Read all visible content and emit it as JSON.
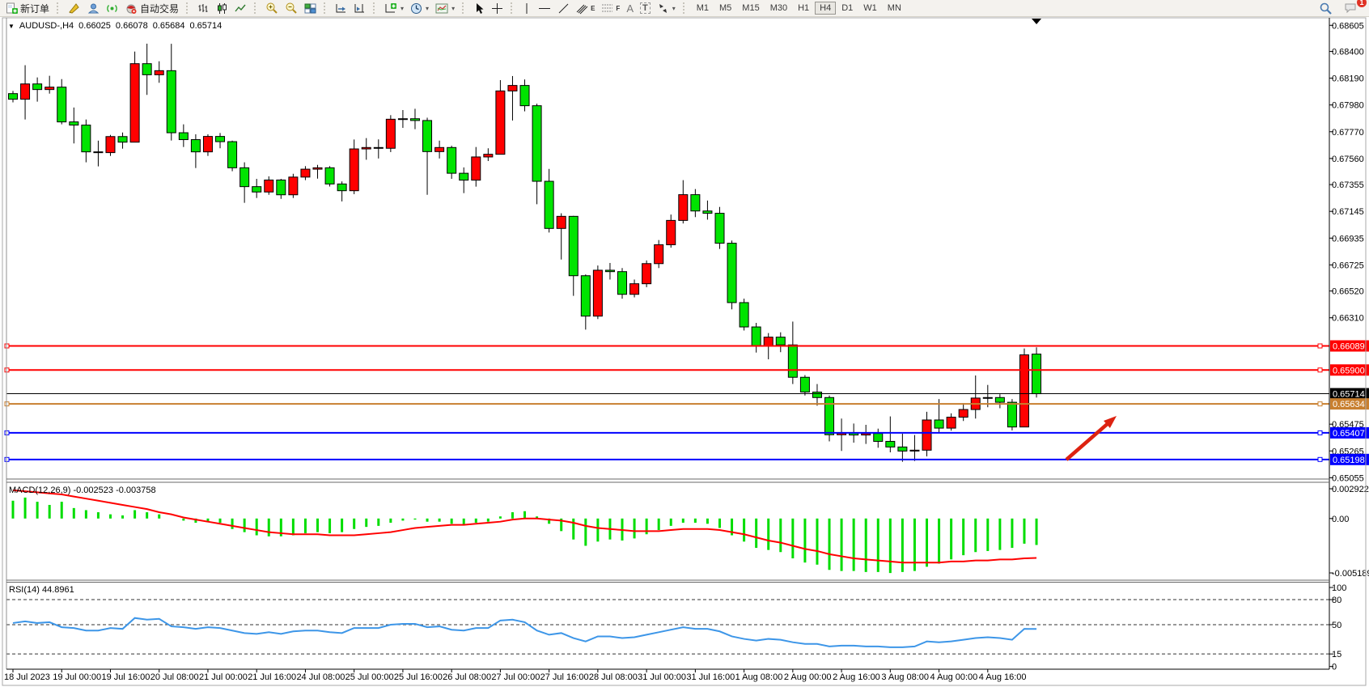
{
  "toolbar": {
    "labels": {
      "new_order": "新订单",
      "autotrading": "自动交易"
    },
    "glyphs": {
      "text_tool": "A",
      "label_tool": "T",
      "channel_sub": "E",
      "fibo_sub": "F",
      "dropdown": "▾"
    },
    "timeframes": [
      "M1",
      "M5",
      "M15",
      "M30",
      "H1",
      "H4",
      "D1",
      "W1",
      "MN"
    ],
    "active_timeframe": "H4",
    "notification_count": "1"
  },
  "chart": {
    "symbol_header": {
      "symbol": "AUDUSD-,H4",
      "open": "0.66025",
      "high": "0.66078",
      "low": "0.65684",
      "close": "0.65714"
    },
    "indicator_labels": {
      "macd": "MACD(12,26,9) -0.002523 -0.003758",
      "rsi": "RSI(14) 44.8961"
    }
  },
  "chart_data": {
    "type": "candlestick",
    "symbol": "AUDUSD-",
    "timeframe": "H4",
    "current_bar": {
      "open": 0.66025,
      "high": 0.66078,
      "low": 0.65684,
      "close": 0.65714
    },
    "colors": {
      "bull": "#ff0000",
      "bear": "#00e400",
      "wick": "#000000",
      "macd_hist": "#00dd00",
      "macd_signal": "#ff0000",
      "rsi_line": "#3d96e8",
      "level_red": "#ff0000",
      "level_orange": "#c87f2f",
      "level_blue": "#0000ff",
      "current_price": "#000000"
    },
    "price_axis_ticks": [
      "0.68605",
      "0.68400",
      "0.68190",
      "0.67980",
      "0.67770",
      "0.67560",
      "0.67355",
      "0.67145",
      "0.66935",
      "0.66725",
      "0.66520",
      "0.66310",
      "0.65475",
      "0.65265",
      "0.65055"
    ],
    "ylim": [
      0.65055,
      0.68605
    ],
    "time_labels": [
      "18 Jul 2023",
      "19 Jul 00:00",
      "19 Jul 16:00",
      "20 Jul 08:00",
      "21 Jul 00:00",
      "21 Jul 16:00",
      "24 Jul 08:00",
      "25 Jul 00:00",
      "25 Jul 16:00",
      "26 Jul 08:00",
      "27 Jul 00:00",
      "27 Jul 16:00",
      "28 Jul 08:00",
      "31 Jul 00:00",
      "31 Jul 16:00",
      "1 Aug 08:00",
      "2 Aug 00:00",
      "2 Aug 16:00",
      "3 Aug 08:00",
      "4 Aug 00:00",
      "4 Aug 16:00"
    ],
    "levels": [
      {
        "label": "0.66089",
        "value": 0.66089,
        "color": "#ff0000",
        "width": 2,
        "current": false
      },
      {
        "label": "0.65900",
        "value": 0.659,
        "color": "#ff0000",
        "width": 2,
        "current": false
      },
      {
        "label": "0.65714",
        "value": 0.65714,
        "color": "#000000",
        "width": 1,
        "current": true
      },
      {
        "label": "0.65634",
        "value": 0.65634,
        "color": "#c87f2f",
        "width": 2,
        "current": false
      },
      {
        "label": "0.65407",
        "value": 0.65407,
        "color": "#0000ff",
        "width": 2,
        "current": false
      },
      {
        "label": "0.65198",
        "value": 0.65198,
        "color": "#0000ff",
        "width": 2,
        "current": false
      }
    ],
    "candles": [
      [
        0.68069,
        0.6809,
        0.68,
        0.68025
      ],
      [
        0.68025,
        0.68292,
        0.67866,
        0.68145
      ],
      [
        0.68145,
        0.68196,
        0.68006,
        0.68101
      ],
      [
        0.68101,
        0.68209,
        0.68069,
        0.6812
      ],
      [
        0.6812,
        0.68183,
        0.67828,
        0.67847
      ],
      [
        0.67847,
        0.6796,
        0.67678,
        0.67822
      ],
      [
        0.67822,
        0.67866,
        0.6753,
        0.67612
      ],
      [
        0.67612,
        0.677,
        0.67498,
        0.67606
      ],
      [
        0.67606,
        0.67745,
        0.6758,
        0.67732
      ],
      [
        0.67732,
        0.67764,
        0.67637,
        0.67688
      ],
      [
        0.67688,
        0.68399,
        0.67688,
        0.68304
      ],
      [
        0.68304,
        0.68461,
        0.68059,
        0.68217
      ],
      [
        0.68217,
        0.68323,
        0.68154,
        0.68249
      ],
      [
        0.68249,
        0.6846,
        0.67701,
        0.67762
      ],
      [
        0.67762,
        0.67828,
        0.6765,
        0.67708
      ],
      [
        0.67708,
        0.6775,
        0.67485,
        0.67612
      ],
      [
        0.67612,
        0.6775,
        0.6758,
        0.67733
      ],
      [
        0.67733,
        0.6776,
        0.6764,
        0.67692
      ],
      [
        0.67692,
        0.677,
        0.6746,
        0.67487
      ],
      [
        0.67487,
        0.6753,
        0.67212,
        0.67339
      ],
      [
        0.67339,
        0.674,
        0.6725,
        0.67297
      ],
      [
        0.67297,
        0.6742,
        0.67275,
        0.67391
      ],
      [
        0.67391,
        0.674,
        0.67243,
        0.67275
      ],
      [
        0.67275,
        0.6744,
        0.6725,
        0.67414
      ],
      [
        0.67414,
        0.675,
        0.6739,
        0.67476
      ],
      [
        0.67476,
        0.6751,
        0.67402,
        0.67487
      ],
      [
        0.67487,
        0.675,
        0.6734,
        0.6736
      ],
      [
        0.6736,
        0.6738,
        0.67223,
        0.67307
      ],
      [
        0.67307,
        0.67709,
        0.6728,
        0.67635
      ],
      [
        0.67635,
        0.6772,
        0.6755,
        0.67646
      ],
      [
        0.67646,
        0.6771,
        0.6756,
        0.6764
      ],
      [
        0.6764,
        0.679,
        0.6761,
        0.67868
      ],
      [
        0.67868,
        0.6794,
        0.678,
        0.67872
      ],
      [
        0.67872,
        0.6795,
        0.6779,
        0.67858
      ],
      [
        0.67858,
        0.6788,
        0.67275,
        0.67614
      ],
      [
        0.67614,
        0.677,
        0.6756,
        0.67646
      ],
      [
        0.67646,
        0.6766,
        0.674,
        0.67444
      ],
      [
        0.67444,
        0.6749,
        0.67288,
        0.6739
      ],
      [
        0.6739,
        0.6765,
        0.67339,
        0.67572
      ],
      [
        0.67572,
        0.6764,
        0.6754,
        0.67593
      ],
      [
        0.67593,
        0.68175,
        0.67593,
        0.6809
      ],
      [
        0.6809,
        0.68207,
        0.67858,
        0.68133
      ],
      [
        0.68133,
        0.6818,
        0.6793,
        0.67974
      ],
      [
        0.67974,
        0.6799,
        0.67201,
        0.67381
      ],
      [
        0.67381,
        0.67478,
        0.66979,
        0.67011
      ],
      [
        0.67011,
        0.6713,
        0.66767,
        0.67106
      ],
      [
        0.67106,
        0.6711,
        0.66482,
        0.6664
      ],
      [
        0.6664,
        0.6665,
        0.66217,
        0.66323
      ],
      [
        0.66323,
        0.6672,
        0.663,
        0.66683
      ],
      [
        0.66683,
        0.6674,
        0.6661,
        0.66672
      ],
      [
        0.66672,
        0.667,
        0.6646,
        0.66494
      ],
      [
        0.66494,
        0.6661,
        0.6647,
        0.66577
      ],
      [
        0.66577,
        0.6676,
        0.6655,
        0.66735
      ],
      [
        0.66735,
        0.6692,
        0.667,
        0.66883
      ],
      [
        0.66883,
        0.6712,
        0.6686,
        0.67074
      ],
      [
        0.67074,
        0.6739,
        0.6705,
        0.67276
      ],
      [
        0.67276,
        0.6732,
        0.671,
        0.67148
      ],
      [
        0.67148,
        0.6723,
        0.6708,
        0.6713
      ],
      [
        0.6713,
        0.6718,
        0.6685,
        0.66895
      ],
      [
        0.66895,
        0.66916,
        0.66376,
        0.66429
      ],
      [
        0.66429,
        0.6646,
        0.6621,
        0.66238
      ],
      [
        0.66238,
        0.6627,
        0.66037,
        0.66086
      ],
      [
        0.66086,
        0.6619,
        0.65984,
        0.66158
      ],
      [
        0.66158,
        0.66196,
        0.6604,
        0.66097
      ],
      [
        0.66097,
        0.6628,
        0.6579,
        0.65843
      ],
      [
        0.65843,
        0.6586,
        0.657,
        0.65727
      ],
      [
        0.65727,
        0.6579,
        0.6562,
        0.65684
      ],
      [
        0.65684,
        0.657,
        0.6534,
        0.65392
      ],
      [
        0.65392,
        0.65519,
        0.65265,
        0.65404
      ],
      [
        0.65404,
        0.6548,
        0.6533,
        0.6539
      ],
      [
        0.6539,
        0.6547,
        0.6532,
        0.65402
      ],
      [
        0.65402,
        0.6544,
        0.6529,
        0.6534
      ],
      [
        0.6534,
        0.65536,
        0.65254,
        0.65296
      ],
      [
        0.65296,
        0.654,
        0.6518,
        0.65264
      ],
      [
        0.65264,
        0.6539,
        0.65186,
        0.65271
      ],
      [
        0.65271,
        0.65572,
        0.65222,
        0.65508
      ],
      [
        0.65508,
        0.65672,
        0.6541,
        0.65444
      ],
      [
        0.65444,
        0.6556,
        0.65424,
        0.6553
      ],
      [
        0.6553,
        0.6564,
        0.655,
        0.6559
      ],
      [
        0.6559,
        0.65857,
        0.65519,
        0.6568
      ],
      [
        0.6568,
        0.65783,
        0.65608,
        0.65684
      ],
      [
        0.65684,
        0.6571,
        0.656,
        0.65647
      ],
      [
        0.65647,
        0.65672,
        0.65426,
        0.65453
      ],
      [
        0.65453,
        0.66069,
        0.65453,
        0.66019
      ],
      [
        0.66025,
        0.66078,
        0.65684,
        0.65714
      ]
    ],
    "macd": {
      "params": "12,26,9",
      "main_value": -0.002523,
      "signal_value": -0.003758,
      "axis_ticks": [
        {
          "label": "0.002922",
          "value": 0.002922
        },
        {
          "label": "0.00",
          "value": 0
        },
        {
          "label": "-0.005189",
          "value": -0.005189
        }
      ],
      "histogram": [
        0.0017,
        0.002,
        0.0016,
        0.0013,
        0.0016,
        0.001,
        0.0008,
        0.0006,
        0.0004,
        0.0003,
        0.0008,
        0.0006,
        0.0004,
        0.0,
        -0.0002,
        -0.0004,
        -0.0003,
        -0.0004,
        -0.001,
        -0.0013,
        -0.0016,
        -0.0017,
        -0.0017,
        -0.0016,
        -0.0014,
        -0.0013,
        -0.0014,
        -0.0013,
        -0.001,
        -0.0008,
        -0.0007,
        -0.0004,
        -0.0002,
        -0.0001,
        -0.0003,
        -0.0003,
        -0.0005,
        -0.0006,
        -0.0004,
        -0.0003,
        0.0002,
        0.0006,
        0.0007,
        0.0002,
        -0.0005,
        -0.0012,
        -0.002,
        -0.0026,
        -0.0022,
        -0.002,
        -0.0021,
        -0.0019,
        -0.0015,
        -0.0011,
        -0.0007,
        -0.0004,
        -0.0004,
        -0.0005,
        -0.0009,
        -0.0016,
        -0.0022,
        -0.0028,
        -0.003,
        -0.0032,
        -0.0038,
        -0.0042,
        -0.0044,
        -0.0049,
        -0.005,
        -0.005,
        -0.0051,
        -0.0051,
        -0.0052,
        -0.0051,
        -0.005,
        -0.0046,
        -0.0043,
        -0.0039,
        -0.0035,
        -0.0032,
        -0.0031,
        -0.003,
        -0.0028,
        -0.0024,
        -0.002523
      ],
      "signal": [
        0.0027,
        0.0026,
        0.0025,
        0.0024,
        0.0023,
        0.0021,
        0.0019,
        0.0017,
        0.0015,
        0.0013,
        0.0011,
        0.0009,
        0.0006,
        0.0004,
        0.0001,
        -0.0001,
        -0.0003,
        -0.0005,
        -0.0007,
        -0.0009,
        -0.0011,
        -0.0013,
        -0.0014,
        -0.0015,
        -0.0015,
        -0.0015,
        -0.0016,
        -0.0016,
        -0.0016,
        -0.0015,
        -0.0014,
        -0.0013,
        -0.0011,
        -0.0009,
        -0.0008,
        -0.0007,
        -0.0006,
        -0.0006,
        -0.0005,
        -0.0004,
        -0.0003,
        -0.0001,
        0.0,
        0.0,
        -0.0001,
        -0.0002,
        -0.0004,
        -0.0007,
        -0.0009,
        -0.001,
        -0.0011,
        -0.0012,
        -0.0012,
        -0.0012,
        -0.0011,
        -0.001,
        -0.001,
        -0.001,
        -0.0011,
        -0.0013,
        -0.0015,
        -0.0018,
        -0.0021,
        -0.0023,
        -0.0026,
        -0.0029,
        -0.0031,
        -0.0034,
        -0.0036,
        -0.0038,
        -0.0039,
        -0.004,
        -0.0041,
        -0.0042,
        -0.0042,
        -0.0042,
        -0.0042,
        -0.0041,
        -0.0041,
        -0.004,
        -0.004,
        -0.0039,
        -0.0039,
        -0.0038,
        -0.003758
      ]
    },
    "rsi": {
      "period": 14,
      "value": 44.8961,
      "axis_ticks": [
        {
          "label": "100",
          "value": 100
        },
        {
          "label": "80",
          "value": 80
        },
        {
          "label": "50",
          "value": 50
        },
        {
          "label": "15",
          "value": 15
        },
        {
          "label": "0",
          "value": 0
        }
      ],
      "dashed_levels": [
        80,
        50,
        15
      ],
      "series": [
        52,
        54,
        52,
        53,
        47,
        46,
        43,
        43,
        46,
        45,
        58,
        56,
        57,
        48,
        47,
        45,
        47,
        46,
        43,
        40,
        39,
        41,
        39,
        42,
        43,
        43,
        41,
        40,
        46,
        46,
        46,
        50,
        51,
        51,
        47,
        48,
        44,
        43,
        46,
        46,
        55,
        56,
        53,
        43,
        38,
        40,
        34,
        30,
        36,
        36,
        34,
        35,
        38,
        41,
        44,
        47,
        45,
        45,
        42,
        36,
        33,
        31,
        33,
        32,
        29,
        27,
        27,
        24,
        25,
        25,
        24,
        24,
        23,
        23,
        24,
        30,
        29,
        30,
        32,
        34,
        35,
        34,
        32,
        45,
        44.8961
      ]
    },
    "annotations": [
      {
        "type": "arrow",
        "color": "#dd2211",
        "from": [
          1318,
          568
        ],
        "to": [
          1380,
          514
        ]
      }
    ]
  }
}
